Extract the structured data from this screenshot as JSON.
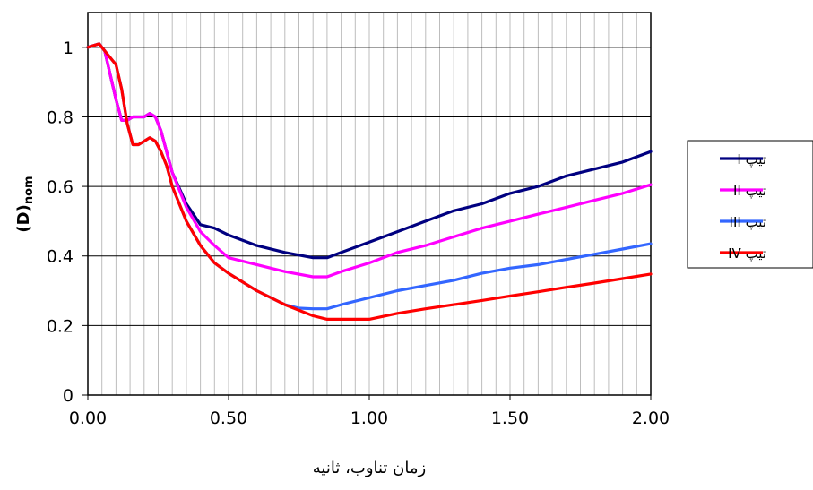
{
  "chart_data": {
    "type": "line",
    "title": "",
    "xlabel": "زمان تناوب، ثانیه",
    "ylabel": "(D)",
    "ylabel_subscript": "nom",
    "xlim": [
      0,
      2.0
    ],
    "ylim": [
      0,
      1.1
    ],
    "x_ticks": [
      "0.00",
      "0.50",
      "1.00",
      "1.50",
      "2.00"
    ],
    "x_tick_values": [
      0,
      0.5,
      1.0,
      1.5,
      2.0
    ],
    "y_ticks": [
      "0",
      "0.2",
      "0.4",
      "0.6",
      "0.8",
      "1"
    ],
    "y_tick_values": [
      0,
      0.2,
      0.4,
      0.6,
      0.8,
      1.0
    ],
    "vertical_grid_step": 0.05,
    "horizontal_grid": true,
    "legend_position": "right",
    "series": [
      {
        "name": "تیپ I",
        "color": "#000080",
        "points": [
          [
            0,
            1.0
          ],
          [
            0.04,
            1.01
          ],
          [
            0.06,
            0.99
          ],
          [
            0.08,
            0.92
          ],
          [
            0.1,
            0.85
          ],
          [
            0.12,
            0.79
          ],
          [
            0.14,
            0.79
          ],
          [
            0.16,
            0.8
          ],
          [
            0.2,
            0.8
          ],
          [
            0.22,
            0.81
          ],
          [
            0.24,
            0.8
          ],
          [
            0.26,
            0.76
          ],
          [
            0.28,
            0.7
          ],
          [
            0.3,
            0.64
          ],
          [
            0.35,
            0.55
          ],
          [
            0.4,
            0.49
          ],
          [
            0.45,
            0.48
          ],
          [
            0.5,
            0.46
          ],
          [
            0.6,
            0.43
          ],
          [
            0.7,
            0.41
          ],
          [
            0.8,
            0.395
          ],
          [
            0.85,
            0.395
          ],
          [
            0.9,
            0.41
          ],
          [
            1.0,
            0.44
          ],
          [
            1.1,
            0.47
          ],
          [
            1.2,
            0.5
          ],
          [
            1.3,
            0.53
          ],
          [
            1.4,
            0.55
          ],
          [
            1.5,
            0.58
          ],
          [
            1.6,
            0.6
          ],
          [
            1.7,
            0.63
          ],
          [
            1.8,
            0.65
          ],
          [
            1.9,
            0.67
          ],
          [
            2.0,
            0.7
          ]
        ]
      },
      {
        "name": "تیپ II",
        "color": "#ff00ff",
        "points": [
          [
            0,
            1.0
          ],
          [
            0.04,
            1.01
          ],
          [
            0.06,
            0.99
          ],
          [
            0.08,
            0.92
          ],
          [
            0.1,
            0.85
          ],
          [
            0.12,
            0.79
          ],
          [
            0.14,
            0.79
          ],
          [
            0.16,
            0.8
          ],
          [
            0.2,
            0.8
          ],
          [
            0.22,
            0.81
          ],
          [
            0.24,
            0.8
          ],
          [
            0.26,
            0.76
          ],
          [
            0.28,
            0.7
          ],
          [
            0.3,
            0.64
          ],
          [
            0.35,
            0.54
          ],
          [
            0.4,
            0.47
          ],
          [
            0.45,
            0.43
          ],
          [
            0.5,
            0.395
          ],
          [
            0.6,
            0.375
          ],
          [
            0.7,
            0.355
          ],
          [
            0.8,
            0.34
          ],
          [
            0.85,
            0.34
          ],
          [
            0.9,
            0.355
          ],
          [
            1.0,
            0.38
          ],
          [
            1.1,
            0.41
          ],
          [
            1.2,
            0.43
          ],
          [
            1.3,
            0.455
          ],
          [
            1.4,
            0.48
          ],
          [
            1.5,
            0.5
          ],
          [
            1.6,
            0.52
          ],
          [
            1.7,
            0.54
          ],
          [
            1.8,
            0.56
          ],
          [
            1.9,
            0.58
          ],
          [
            2.0,
            0.605
          ]
        ]
      },
      {
        "name": "تیپ III",
        "color": "#3366ff",
        "points": [
          [
            0,
            1.0
          ],
          [
            0.04,
            1.01
          ],
          [
            0.06,
            0.99
          ],
          [
            0.08,
            0.97
          ],
          [
            0.1,
            0.95
          ],
          [
            0.12,
            0.88
          ],
          [
            0.14,
            0.78
          ],
          [
            0.16,
            0.72
          ],
          [
            0.18,
            0.72
          ],
          [
            0.2,
            0.73
          ],
          [
            0.22,
            0.74
          ],
          [
            0.24,
            0.73
          ],
          [
            0.26,
            0.7
          ],
          [
            0.28,
            0.66
          ],
          [
            0.3,
            0.6
          ],
          [
            0.35,
            0.5
          ],
          [
            0.4,
            0.43
          ],
          [
            0.45,
            0.38
          ],
          [
            0.5,
            0.35
          ],
          [
            0.6,
            0.3
          ],
          [
            0.7,
            0.26
          ],
          [
            0.75,
            0.25
          ],
          [
            0.8,
            0.248
          ],
          [
            0.85,
            0.248
          ],
          [
            0.9,
            0.26
          ],
          [
            1.0,
            0.28
          ],
          [
            1.1,
            0.3
          ],
          [
            1.2,
            0.315
          ],
          [
            1.3,
            0.33
          ],
          [
            1.4,
            0.35
          ],
          [
            1.5,
            0.365
          ],
          [
            1.6,
            0.375
          ],
          [
            1.7,
            0.39
          ],
          [
            1.8,
            0.405
          ],
          [
            1.9,
            0.42
          ],
          [
            2.0,
            0.435
          ]
        ]
      },
      {
        "name": "تیپ IV",
        "color": "#ff0000",
        "points": [
          [
            0,
            1.0
          ],
          [
            0.04,
            1.01
          ],
          [
            0.06,
            0.99
          ],
          [
            0.08,
            0.97
          ],
          [
            0.1,
            0.95
          ],
          [
            0.12,
            0.88
          ],
          [
            0.14,
            0.78
          ],
          [
            0.16,
            0.72
          ],
          [
            0.18,
            0.72
          ],
          [
            0.2,
            0.73
          ],
          [
            0.22,
            0.74
          ],
          [
            0.24,
            0.73
          ],
          [
            0.26,
            0.7
          ],
          [
            0.28,
            0.66
          ],
          [
            0.3,
            0.6
          ],
          [
            0.35,
            0.5
          ],
          [
            0.4,
            0.43
          ],
          [
            0.45,
            0.38
          ],
          [
            0.5,
            0.35
          ],
          [
            0.6,
            0.3
          ],
          [
            0.7,
            0.26
          ],
          [
            0.8,
            0.228
          ],
          [
            0.85,
            0.218
          ],
          [
            0.9,
            0.218
          ],
          [
            1.0,
            0.218
          ],
          [
            1.1,
            0.235
          ],
          [
            1.2,
            0.248
          ],
          [
            1.3,
            0.26
          ],
          [
            1.4,
            0.272
          ],
          [
            1.5,
            0.285
          ],
          [
            1.6,
            0.297
          ],
          [
            1.7,
            0.31
          ],
          [
            1.8,
            0.322
          ],
          [
            1.9,
            0.335
          ],
          [
            2.0,
            0.348
          ]
        ]
      }
    ]
  }
}
